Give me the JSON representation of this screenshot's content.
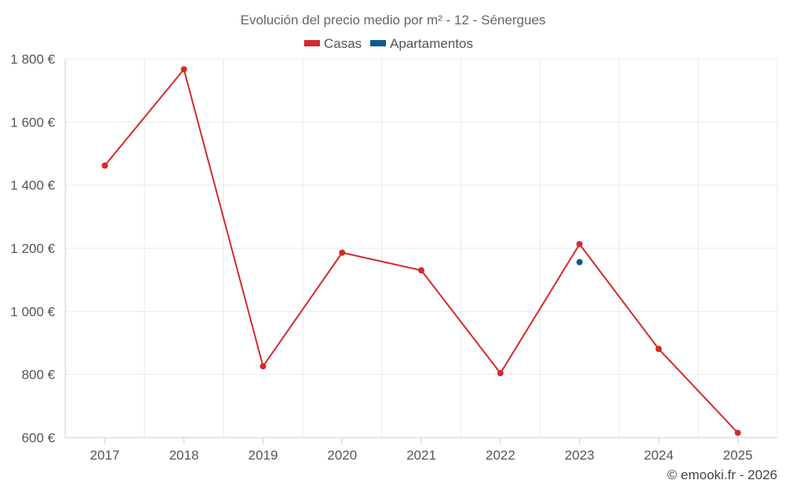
{
  "chart_data": {
    "type": "line",
    "title": "Evolución del precio medio por m² - 12 - Sénergues",
    "categories": [
      "2017",
      "2018",
      "2019",
      "2020",
      "2021",
      "2022",
      "2023",
      "2024",
      "2025"
    ],
    "series": [
      {
        "name": "Casas",
        "color": "#d42a2a",
        "values": [
          1462,
          1767,
          826,
          1186,
          1130,
          804,
          1213,
          881,
          615
        ]
      },
      {
        "name": "Apartamentos",
        "color": "#0d5c91",
        "values": [
          null,
          null,
          null,
          null,
          null,
          null,
          1156,
          null,
          null
        ]
      }
    ],
    "ylim": [
      600,
      1800
    ],
    "yticks": [
      600,
      800,
      1000,
      1200,
      1400,
      1600,
      1800
    ],
    "ytick_labels": [
      "600 €",
      "800 €",
      "1 000 €",
      "1 200 €",
      "1 400 €",
      "1 600 €",
      "1 800 €"
    ],
    "xlabel": "",
    "ylabel": "",
    "grid": true,
    "legend_position": "top-center"
  },
  "credit": "© emooki.fr - 2026"
}
